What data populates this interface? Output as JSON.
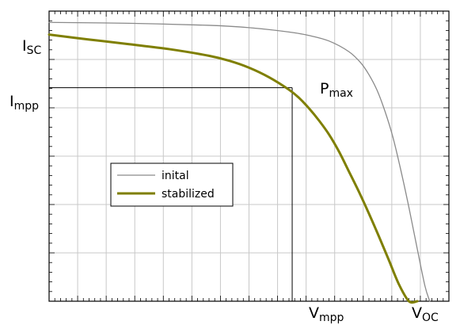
{
  "chart_data": {
    "type": "line",
    "title": "",
    "xlabel": "",
    "ylabel": "",
    "xlim": [
      0,
      100
    ],
    "ylim": [
      0,
      100
    ],
    "grid": true,
    "legend_position": "center-left",
    "series": [
      {
        "name": "inital",
        "color": "#8a8a8a",
        "x": [
          0,
          20,
          40,
          50,
          60,
          65,
          70,
          75,
          78,
          80,
          82,
          84,
          86,
          88,
          90,
          92,
          94,
          95.2
        ],
        "y": [
          96.1,
          95.8,
          95.1,
          94.3,
          92.8,
          91.6,
          89.7,
          86.0,
          82.1,
          78.1,
          72.8,
          65.5,
          56.5,
          45.0,
          32.3,
          18.6,
          5.3,
          0
        ]
      },
      {
        "name": "stabilized",
        "color": "#7f7f00",
        "x": [
          0,
          10,
          20,
          30,
          40,
          45,
          50,
          55,
          60,
          62.5,
          65,
          67.5,
          70,
          72.5,
          75,
          77.5,
          80,
          82.5,
          85,
          87.5,
          90,
          92.1
        ],
        "y": [
          91.9,
          90.2,
          88.6,
          86.9,
          84.6,
          82.9,
          80.5,
          77.2,
          72.9,
          70.1,
          66.5,
          62.3,
          57.5,
          51.6,
          44.7,
          37.7,
          30.2,
          22.3,
          14.1,
          5.8,
          0,
          0
        ]
      }
    ],
    "annotations": {
      "isc": {
        "main": "I",
        "sub": "SC",
        "value": 96.1
      },
      "impp": {
        "main": "I",
        "sub": "mpp",
        "value": 73.6
      },
      "vmpp": {
        "main": "V",
        "sub": "mpp",
        "value": 60.8
      },
      "voc": {
        "main": "V",
        "sub": "OC",
        "value": 92.1
      },
      "pmax": {
        "main": "P",
        "sub": "max",
        "x": 60.8,
        "y": 73.6
      }
    }
  }
}
